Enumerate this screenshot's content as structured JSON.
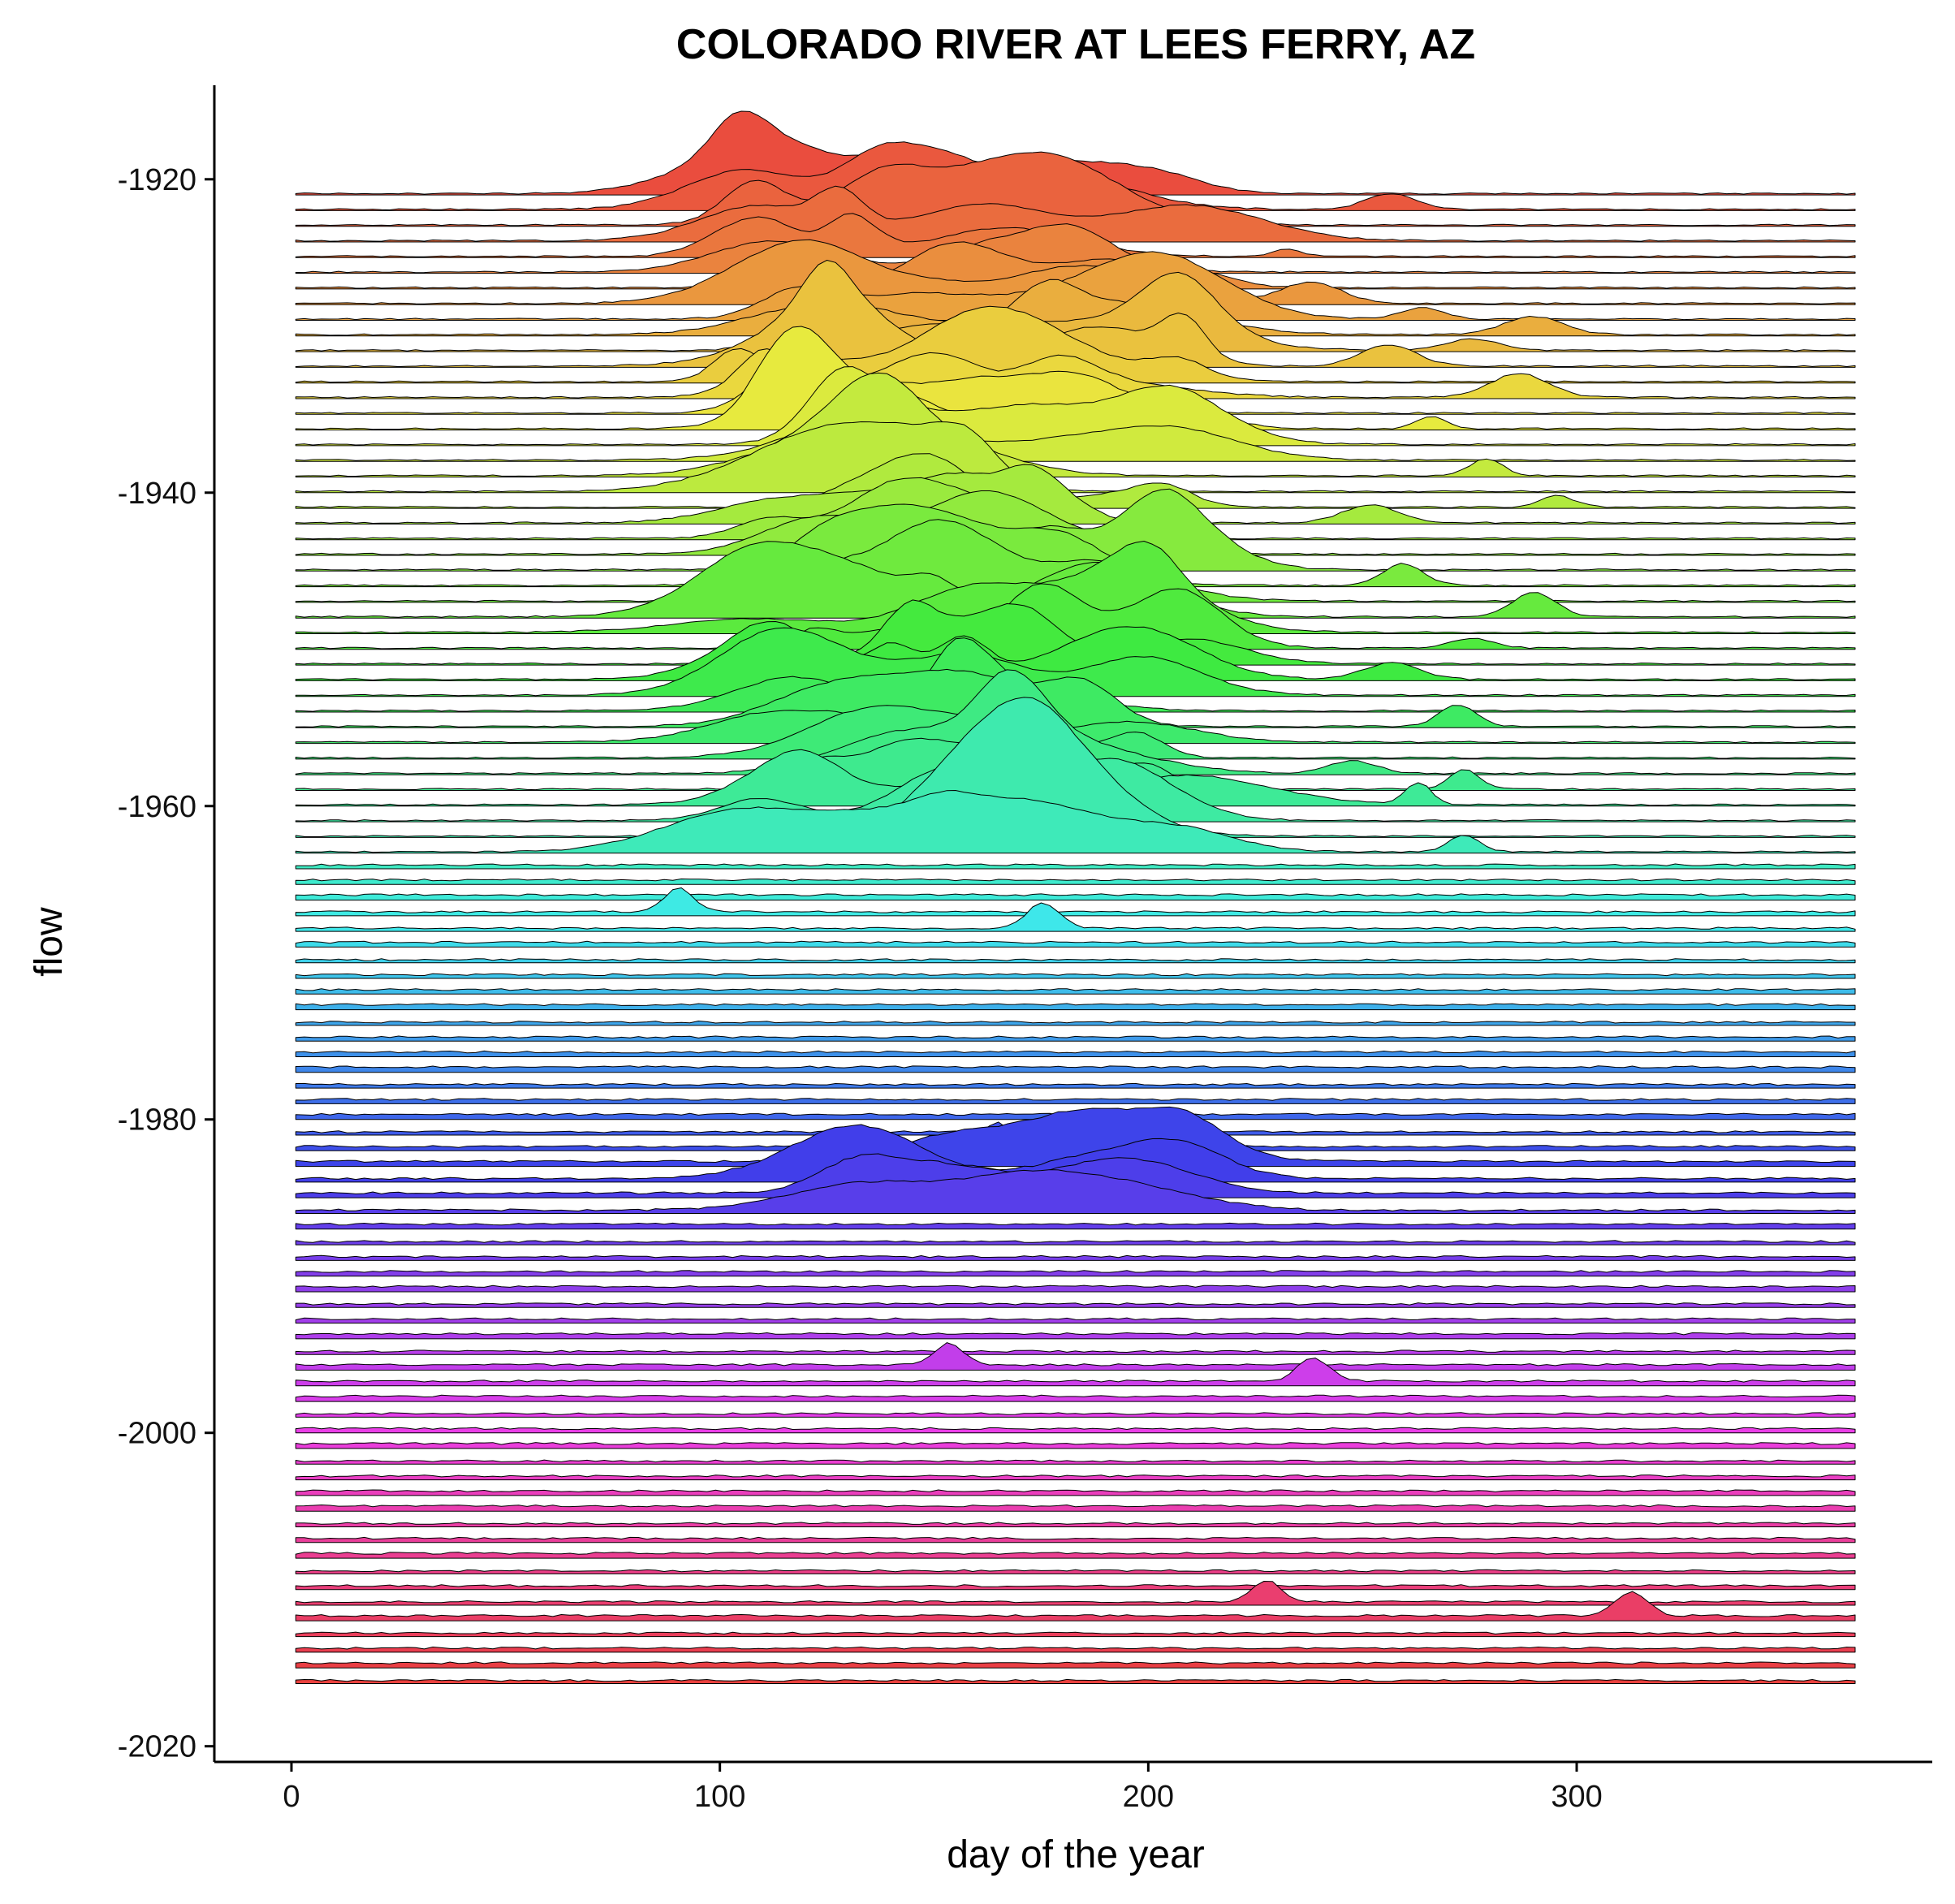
{
  "chart_data": {
    "type": "ridgeline",
    "title": "COLORADO RIVER AT LEES FERRY, AZ",
    "xlabel": "day of the year",
    "ylabel": "flow",
    "xlim": [
      -18,
      383
    ],
    "ylim": [
      -2021,
      -1914
    ],
    "x_ticks": [
      {
        "value": 0,
        "label": "0"
      },
      {
        "value": 100,
        "label": "100"
      },
      {
        "value": 200,
        "label": "200"
      },
      {
        "value": 300,
        "label": "300"
      }
    ],
    "y_ticks": [
      {
        "value": -1920,
        "label": "-1920"
      },
      {
        "value": -1940,
        "label": "-1940"
      },
      {
        "value": -1960,
        "label": "-1960"
      },
      {
        "value": -1980,
        "label": "-1980"
      },
      {
        "value": -2000,
        "label": "-2000"
      },
      {
        "value": -2020,
        "label": "-2020"
      }
    ],
    "year_range": [
      1921,
      2016
    ],
    "day_range": [
      1,
      365
    ],
    "fill": "one distinct hue per year (rainbow, red to magenta to red)",
    "grid": false,
    "legend": "none"
  }
}
